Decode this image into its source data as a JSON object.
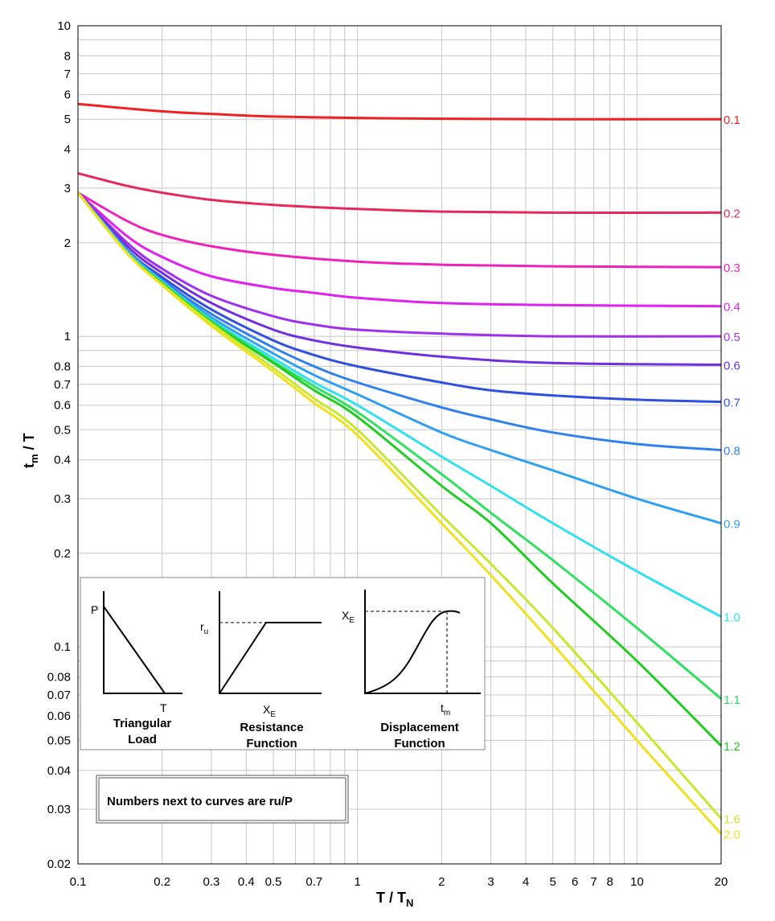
{
  "chart_data": {
    "type": "line",
    "xscale": "log",
    "yscale": "log",
    "xlim": [
      0.1,
      20
    ],
    "ylim": [
      0.02,
      10
    ],
    "grid": true,
    "xlabel": "T / T",
    "xlabel_sub": "N",
    "ylabel": "t",
    "ylabel_sub": "m",
    "ylabel_suffix": " / T",
    "xticks": [
      0.1,
      0.2,
      0.3,
      0.4,
      0.5,
      0.7,
      1,
      2,
      3,
      4,
      5,
      6,
      7,
      8,
      10,
      20
    ],
    "xtick_labels": [
      "0.1",
      "0.2",
      "0.3",
      "0.4",
      "0.5",
      "0.7",
      "1",
      "2",
      "3",
      "4",
      "5",
      "6",
      "7",
      "8",
      "10",
      "20"
    ],
    "yticks": [
      0.02,
      0.03,
      0.04,
      0.05,
      0.06,
      0.07,
      0.08,
      0.1,
      0.2,
      0.3,
      0.4,
      0.5,
      0.6,
      0.7,
      0.8,
      1,
      2,
      3,
      4,
      5,
      6,
      7,
      8,
      10
    ],
    "ytick_labels": [
      "0.02",
      "0.03",
      "0.04",
      "0.05",
      "0.06",
      "0.07",
      "0.08",
      "0.1",
      "0.2",
      "0.3",
      "0.4",
      "0.5",
      "0.6",
      "0.7",
      "0.8",
      "1",
      "2",
      "3",
      "4",
      "5",
      "6",
      "7",
      "8",
      "10"
    ],
    "series": [
      {
        "name": "0.1",
        "color": "#ee2222",
        "x": [
          0.1,
          0.2,
          0.3,
          0.5,
          1,
          2,
          5,
          20
        ],
        "y": [
          5.6,
          5.3,
          5.2,
          5.1,
          5.05,
          5.02,
          5.0,
          5.0
        ]
      },
      {
        "name": "0.2",
        "color": "#e8285a",
        "x": [
          0.1,
          0.15,
          0.2,
          0.3,
          0.5,
          1,
          2,
          5,
          20
        ],
        "y": [
          3.35,
          3.05,
          2.9,
          2.75,
          2.65,
          2.57,
          2.52,
          2.5,
          2.5
        ]
      },
      {
        "name": "0.3",
        "color": "#ee22bb",
        "x": [
          0.1,
          0.15,
          0.2,
          0.3,
          0.5,
          1,
          2,
          5,
          20
        ],
        "y": [
          2.9,
          2.35,
          2.12,
          1.95,
          1.83,
          1.74,
          1.7,
          1.68,
          1.67
        ]
      },
      {
        "name": "0.4",
        "color": "#e022ee",
        "x": [
          0.1,
          0.15,
          0.2,
          0.3,
          0.5,
          0.7,
          1,
          2,
          5,
          20
        ],
        "y": [
          2.9,
          2.1,
          1.8,
          1.56,
          1.43,
          1.38,
          1.33,
          1.28,
          1.26,
          1.25
        ]
      },
      {
        "name": "0.5",
        "color": "#a030ee",
        "x": [
          0.1,
          0.15,
          0.2,
          0.3,
          0.5,
          0.7,
          1,
          2,
          5,
          20
        ],
        "y": [
          2.9,
          2.0,
          1.65,
          1.35,
          1.16,
          1.09,
          1.05,
          1.02,
          1.0,
          1.0
        ]
      },
      {
        "name": "0.6",
        "color": "#7030e0",
        "x": [
          0.1,
          0.15,
          0.2,
          0.3,
          0.5,
          0.7,
          1,
          2,
          5,
          20
        ],
        "y": [
          2.9,
          1.95,
          1.6,
          1.28,
          1.05,
          0.97,
          0.92,
          0.86,
          0.82,
          0.81
        ]
      },
      {
        "name": "0.7",
        "color": "#3050e0",
        "x": [
          0.1,
          0.15,
          0.2,
          0.3,
          0.5,
          0.7,
          1,
          2,
          3,
          5,
          10,
          20
        ],
        "y": [
          2.9,
          1.9,
          1.55,
          1.22,
          0.97,
          0.87,
          0.8,
          0.71,
          0.67,
          0.645,
          0.625,
          0.615
        ]
      },
      {
        "name": "0.8",
        "color": "#3080f0",
        "x": [
          0.1,
          0.15,
          0.2,
          0.3,
          0.5,
          0.7,
          1,
          2,
          3,
          5,
          10,
          20
        ],
        "y": [
          2.9,
          1.9,
          1.52,
          1.18,
          0.92,
          0.8,
          0.71,
          0.59,
          0.54,
          0.49,
          0.45,
          0.43
        ]
      },
      {
        "name": "0.9",
        "color": "#30a0f0",
        "x": [
          0.1,
          0.15,
          0.2,
          0.3,
          0.5,
          0.7,
          1,
          2,
          3,
          5,
          10,
          20
        ],
        "y": [
          2.9,
          1.88,
          1.5,
          1.15,
          0.88,
          0.75,
          0.65,
          0.49,
          0.43,
          0.37,
          0.3,
          0.25
        ]
      },
      {
        "name": "1.0",
        "color": "#30e0f0",
        "x": [
          0.1,
          0.15,
          0.2,
          0.3,
          0.5,
          0.7,
          1,
          2,
          3,
          5,
          10,
          20
        ],
        "y": [
          2.9,
          1.87,
          1.5,
          1.13,
          0.85,
          0.71,
          0.6,
          0.41,
          0.33,
          0.25,
          0.175,
          0.125
        ]
      },
      {
        "name": "1.1",
        "color": "#30e060",
        "x": [
          0.1,
          0.15,
          0.2,
          0.3,
          0.5,
          0.7,
          1,
          2,
          3,
          5,
          10,
          20
        ],
        "y": [
          2.9,
          1.86,
          1.49,
          1.12,
          0.83,
          0.69,
          0.57,
          0.36,
          0.27,
          0.19,
          0.115,
          0.068
        ]
      },
      {
        "name": "1.2",
        "color": "#22cc22",
        "x": [
          0.1,
          0.15,
          0.2,
          0.3,
          0.5,
          0.7,
          1,
          2,
          3,
          5,
          10,
          20
        ],
        "y": [
          2.9,
          1.85,
          1.48,
          1.11,
          0.82,
          0.67,
          0.55,
          0.33,
          0.25,
          0.16,
          0.09,
          0.048
        ]
      },
      {
        "name": "1.6",
        "color": "#c8e830",
        "x": [
          0.1,
          0.15,
          0.2,
          0.3,
          0.5,
          0.7,
          1,
          2,
          3,
          5,
          10,
          20
        ],
        "y": [
          2.9,
          1.85,
          1.47,
          1.1,
          0.79,
          0.63,
          0.5,
          0.265,
          0.185,
          0.115,
          0.057,
          0.028
        ]
      },
      {
        "name": "2.0",
        "color": "#f0e020",
        "x": [
          0.1,
          0.15,
          0.2,
          0.3,
          0.5,
          0.7,
          1,
          2,
          3,
          5,
          10,
          20
        ],
        "y": [
          2.9,
          1.85,
          1.46,
          1.08,
          0.77,
          0.61,
          0.48,
          0.25,
          0.17,
          0.102,
          0.05,
          0.025
        ]
      }
    ],
    "label_colors": {
      "0.1": "#ee2222",
      "0.2": "#e8285a",
      "0.3": "#ee22bb",
      "0.4": "#e022ee",
      "0.5": "#a030ee",
      "0.6": "#7030e0",
      "0.7": "#3050e0",
      "0.8": "#3080f0",
      "0.9": "#30a0f0",
      "1.0": "#30e0f0",
      "1.1": "#30e060",
      "1.2": "#22cc22",
      "1.6": "#c8e830",
      "2.0": "#f0e020"
    }
  },
  "inset": {
    "triangular": {
      "peak_label": "P",
      "time_label": "T",
      "caption_line1": "Triangular",
      "caption_line2": "Load"
    },
    "resistance": {
      "y_label": "r",
      "y_label_sub": "u",
      "x_label": "X",
      "x_label_sub": "E",
      "caption_line1": "Resistance",
      "caption_line2": "Function"
    },
    "displacement": {
      "y_label": "X",
      "y_label_sub": "E",
      "x_label": "t",
      "x_label_sub": "m",
      "caption_line1": "Displacement",
      "caption_line2": "Function"
    }
  },
  "note": {
    "text": "Numbers next to curves are ru/P"
  }
}
